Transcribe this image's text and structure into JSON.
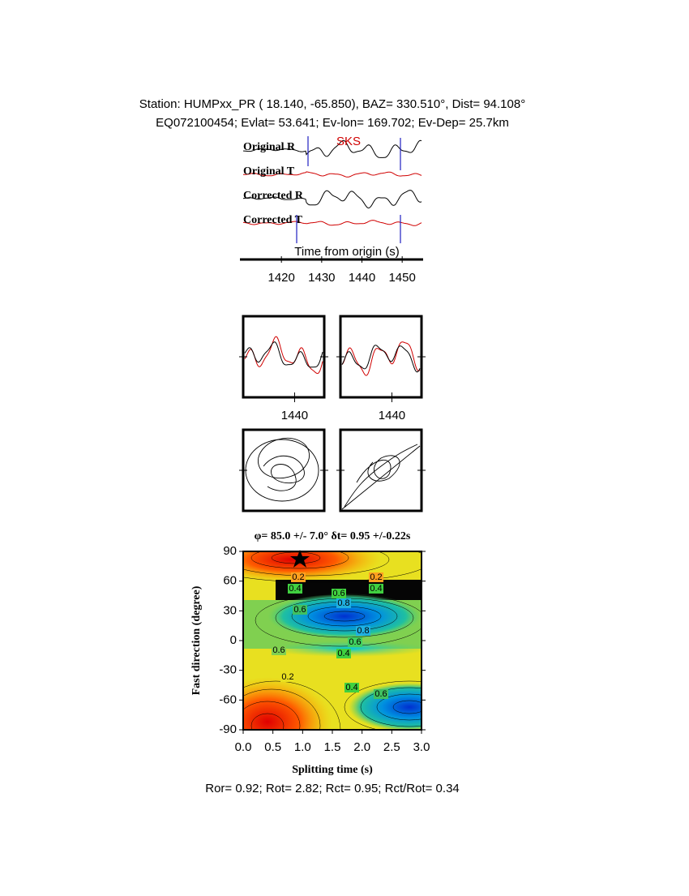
{
  "header": {
    "line1": "Station: HUMPxx_PR (  18.140,  -65.850), BAZ=  330.510°, Dist=   94.108°",
    "line2": "EQ072100454; Evlat=  53.641; Ev-lon= 169.702; Ev-Dep= 25.7km"
  },
  "chart_data": [
    {
      "type": "waveform",
      "traces": [
        "Original R",
        "Original T",
        "Corrected R",
        "Corrected T"
      ],
      "phase": "SKS",
      "xlabel": "Time from origin (s)",
      "xlim": [
        1410.5,
        1454.8
      ],
      "xticks": [
        1420,
        1430,
        1440,
        1450
      ]
    },
    {
      "type": "waveform-comparison",
      "xlim": [
        1423.5,
        1449.5
      ],
      "xticks": [
        1440
      ]
    },
    {
      "type": "contour",
      "title": "φ= 85.0 +/- 7.0° δt= 0.95 +/-0.22s",
      "xlabel": "Splitting time (s)",
      "ylabel": "Fast direction (degree)",
      "xlim": [
        0,
        3
      ],
      "ylim": [
        -90,
        90
      ],
      "xticks": [
        {
          "value": 0,
          "label": "0.0"
        },
        {
          "value": 0.5,
          "label": "0.5"
        },
        {
          "value": 1,
          "label": "1.0"
        },
        {
          "value": 1.5,
          "label": "1.5"
        },
        {
          "value": 2,
          "label": "2.0"
        },
        {
          "value": 2.5,
          "label": "2.5"
        },
        {
          "value": 3,
          "label": "3.0"
        }
      ],
      "yticks": [
        90,
        60,
        30,
        0,
        -30,
        -60,
        -90
      ],
      "contour_labels": [
        "0.2",
        "0.4",
        "0.2",
        "0.4",
        "0.6",
        "0.8",
        "0.6",
        "0.8",
        "0.6",
        "0.4",
        "0.6",
        "0.2",
        "0.4",
        "0.6"
      ]
    }
  ],
  "footer": "Ror= 0.92; Rot= 2.82; Rct= 0.95; Rct/Rot= 0.34"
}
